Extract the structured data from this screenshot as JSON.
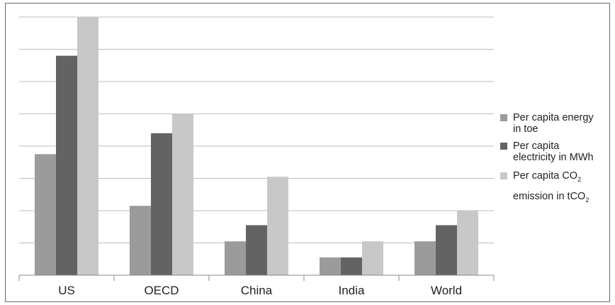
{
  "chart_data": {
    "type": "bar",
    "categories": [
      "US",
      "OECD",
      "China",
      "India",
      "World"
    ],
    "series": [
      {
        "name": "Per capita energy in toe",
        "color": "#9b9b9b",
        "values": [
          7.5,
          4.3,
          2.1,
          1.1,
          2.1
        ]
      },
      {
        "name": "Per capita electricity in MWh",
        "color": "#636363",
        "values": [
          13.6,
          8.8,
          3.1,
          1.1,
          3.1
        ]
      },
      {
        "name": "Per capita CO₂ emission in tCO₂",
        "color": "#c8c8c8",
        "values": [
          16.0,
          10.0,
          6.1,
          2.1,
          4.0
        ]
      }
    ],
    "ylim": [
      0,
      16
    ],
    "grid": true,
    "legend_position": "right",
    "title": "",
    "xlabel": "",
    "ylabel": ""
  },
  "legend": {
    "items": [
      {
        "line1": "Per capita energy",
        "line2": "in toe"
      },
      {
        "line1": "Per capita",
        "line2": "electricity in MWh"
      },
      {
        "line1": "Per capita CO",
        "sub1": "2",
        "line2": "emission in tCO",
        "sub2": "2"
      }
    ]
  }
}
